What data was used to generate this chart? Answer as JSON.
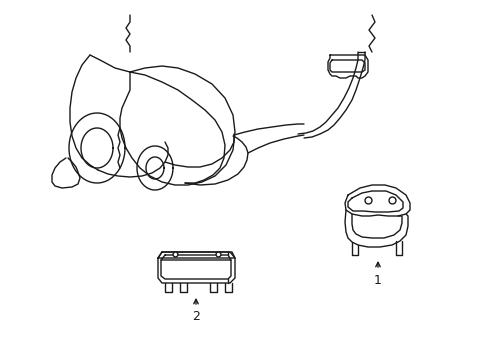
{
  "bg_color": "#ffffff",
  "line_color": "#1a1a1a",
  "line_width": 1.0,
  "figsize": [
    4.89,
    3.6
  ],
  "dpi": 100,
  "label1": "1",
  "label2": "2"
}
